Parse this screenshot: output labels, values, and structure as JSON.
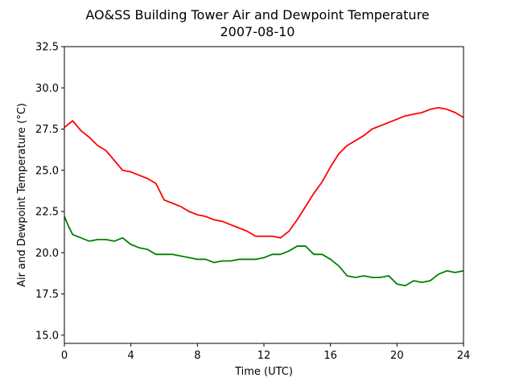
{
  "chart_data": {
    "type": "line",
    "title": "AO&SS Building Tower Air and Dewpoint Temperature",
    "subtitle": "2007-08-10",
    "xlabel": "Time (UTC)",
    "ylabel": "Air and Dewpoint Temperature (°C)",
    "xlim": [
      0,
      24
    ],
    "ylim": [
      14.5,
      32.5
    ],
    "xticks": [
      0,
      4,
      8,
      12,
      16,
      20,
      24
    ],
    "xtick_labels": [
      "0",
      "4",
      "8",
      "12",
      "16",
      "20",
      "24"
    ],
    "yticks": [
      15.0,
      17.5,
      20.0,
      22.5,
      25.0,
      27.5,
      30.0,
      32.5
    ],
    "ytick_labels": [
      "15.0",
      "17.5",
      "20.0",
      "22.5",
      "25.0",
      "27.5",
      "30.0",
      "32.5"
    ],
    "grid": false,
    "legend": "none",
    "series": [
      {
        "color": "#ff0000",
        "x": [
          0,
          0.25,
          0.5,
          0.75,
          1,
          1.5,
          2,
          2.5,
          3,
          3.5,
          4,
          4.5,
          5,
          5.5,
          6,
          6.5,
          7,
          7.5,
          8,
          8.5,
          9,
          9.5,
          10,
          10.5,
          11,
          11.5,
          12,
          12.5,
          13,
          13.5,
          14,
          14.5,
          15,
          15.5,
          16,
          16.5,
          17,
          17.5,
          18,
          18.5,
          19,
          19.5,
          20,
          20.5,
          21,
          21.5,
          22,
          22.5,
          23,
          23.5,
          24
        ],
        "y": [
          27.6,
          27.8,
          28.0,
          27.7,
          27.4,
          27.0,
          26.5,
          26.2,
          25.6,
          25.0,
          24.9,
          24.7,
          24.5,
          24.2,
          23.2,
          23.0,
          22.8,
          22.5,
          22.3,
          22.2,
          22.0,
          21.9,
          21.7,
          21.5,
          21.3,
          21.0,
          21.0,
          21.0,
          20.9,
          21.3,
          22.0,
          22.8,
          23.6,
          24.3,
          25.2,
          26.0,
          26.5,
          26.8,
          27.1,
          27.5,
          27.7,
          27.9,
          28.1,
          28.3,
          28.4,
          28.5,
          28.7,
          28.8,
          28.7,
          28.5,
          28.2
        ]
      },
      {
        "color": "#008000",
        "x": [
          0,
          0.25,
          0.5,
          0.75,
          1,
          1.5,
          2,
          2.5,
          3,
          3.5,
          4,
          4.5,
          5,
          5.5,
          6,
          6.5,
          7,
          7.5,
          8,
          8.5,
          9,
          9.5,
          10,
          10.5,
          11,
          11.5,
          12,
          12.5,
          13,
          13.5,
          14,
          14.5,
          15,
          15.5,
          16,
          16.5,
          17,
          17.5,
          18,
          18.5,
          19,
          19.5,
          20,
          20.5,
          21,
          21.5,
          22,
          22.5,
          23,
          23.5,
          24
        ],
        "y": [
          22.2,
          21.6,
          21.1,
          21.0,
          20.9,
          20.7,
          20.8,
          20.8,
          20.7,
          20.9,
          20.5,
          20.3,
          20.2,
          19.9,
          19.9,
          19.9,
          19.8,
          19.7,
          19.6,
          19.6,
          19.4,
          19.5,
          19.5,
          19.6,
          19.6,
          19.6,
          19.7,
          19.9,
          19.9,
          20.1,
          20.4,
          20.4,
          19.9,
          19.9,
          19.6,
          19.2,
          18.6,
          18.5,
          18.6,
          18.5,
          18.5,
          18.6,
          18.1,
          18.0,
          18.3,
          18.2,
          18.3,
          18.7,
          18.9,
          18.8,
          18.9
        ]
      }
    ]
  }
}
